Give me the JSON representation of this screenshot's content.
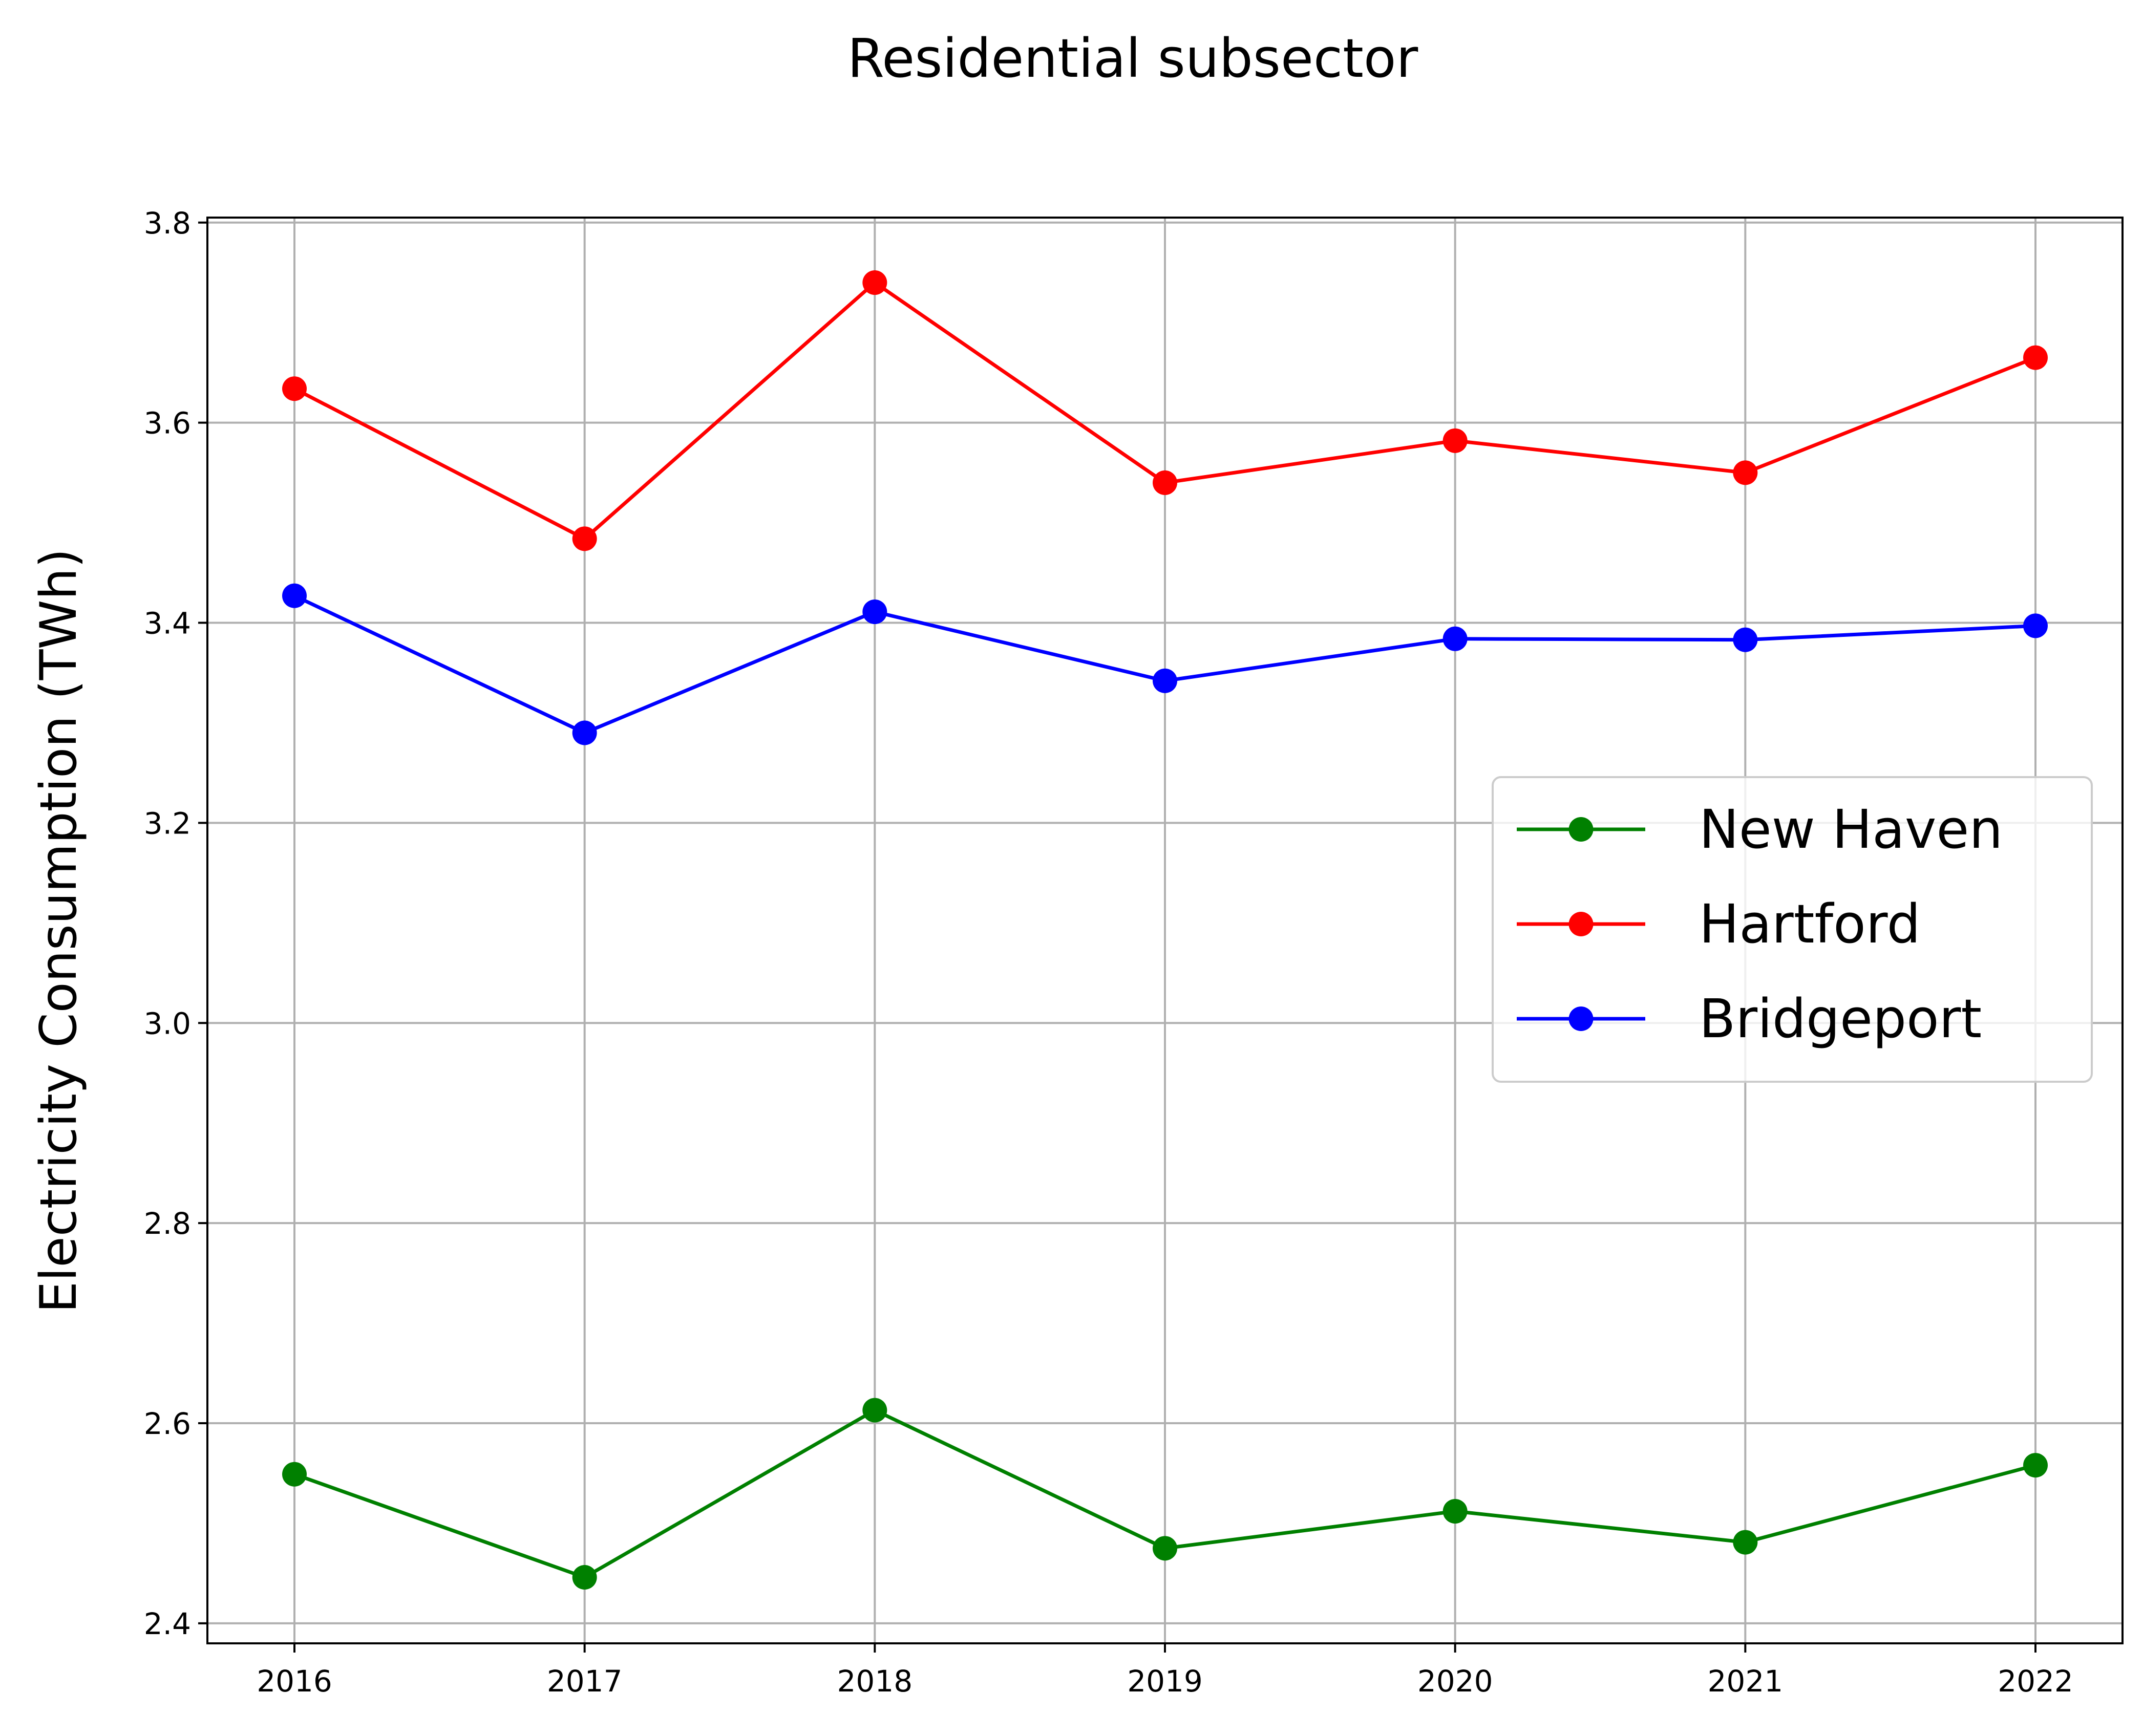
{
  "chart_data": {
    "type": "line",
    "title": "Residential subsector",
    "xlabel": "",
    "ylabel": "Electricity Consumption (TWh)",
    "x": [
      2016,
      2017,
      2018,
      2019,
      2020,
      2021,
      2022
    ],
    "x_tick_labels": [
      "2016",
      "2017",
      "2018",
      "2019",
      "2020",
      "2021",
      "2022"
    ],
    "xlim": [
      2015.7,
      2022.3
    ],
    "ylim": [
      2.38,
      3.805
    ],
    "y_ticks": [
      2.4,
      2.6,
      2.8,
      3.0,
      3.2,
      3.4,
      3.6,
      3.8
    ],
    "y_tick_labels": [
      "2.4",
      "2.6",
      "2.8",
      "3.0",
      "3.2",
      "3.4",
      "3.6",
      "3.8"
    ],
    "grid": true,
    "legend_position": "center-right",
    "series": [
      {
        "name": "New Haven",
        "color": "#008000",
        "marker": "circle",
        "values": [
          2.549,
          2.446,
          2.613,
          2.475,
          2.512,
          2.481,
          2.558
        ]
      },
      {
        "name": "Hartford",
        "color": "#ff0000",
        "marker": "circle",
        "values": [
          3.634,
          3.484,
          3.74,
          3.54,
          3.582,
          3.55,
          3.665
        ]
      },
      {
        "name": "Bridgeport",
        "color": "#0000ff",
        "marker": "circle",
        "values": [
          3.427,
          3.29,
          3.411,
          3.342,
          3.384,
          3.383,
          3.397
        ]
      }
    ]
  }
}
